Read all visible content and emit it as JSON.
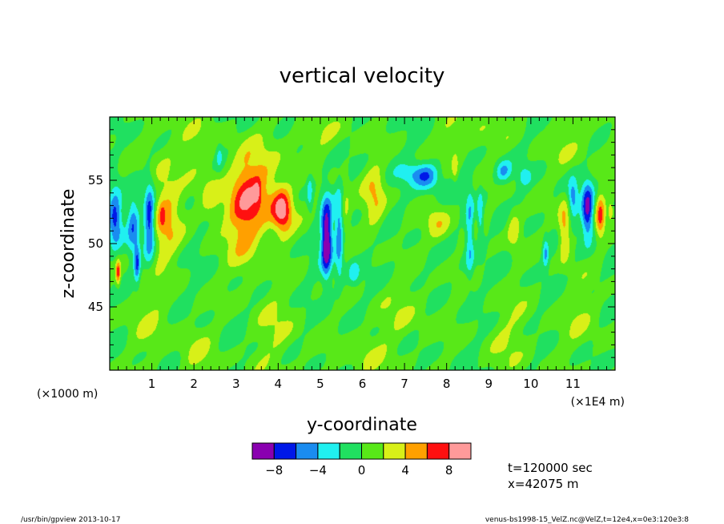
{
  "chart_data": {
    "type": "heatmap",
    "title": "vertical velocity",
    "xlabel": "y-coordinate",
    "ylabel": "z-coordinate",
    "x_unit_left": "(×1000 m)",
    "x_unit_right": "(×1E4 m)",
    "xlim": [
      0,
      12
    ],
    "ylim": [
      40,
      60
    ],
    "x_ticks": [
      "1",
      "2",
      "3",
      "4",
      "5",
      "6",
      "7",
      "8",
      "9",
      "10",
      "11"
    ],
    "x_tick_values": [
      1,
      2,
      3,
      4,
      5,
      6,
      7,
      8,
      9,
      10,
      11
    ],
    "y_ticks": [
      "45",
      "50",
      "55"
    ],
    "y_tick_values": [
      45,
      50,
      55
    ],
    "info_lines": [
      "t=120000 sec",
      "x=42075 m"
    ],
    "colorbar": {
      "levels": [
        -10,
        -8,
        -6,
        -4,
        -2,
        0,
        2,
        4,
        6,
        8,
        10
      ],
      "colors": [
        "#8a00b0",
        "#0018e8",
        "#1a8cf0",
        "#20f0f0",
        "#20e060",
        "#58e818",
        "#d8f018",
        "#ffa000",
        "#ff1010",
        "#ff9a9a"
      ],
      "tick_labels": [
        "−8",
        "−4",
        "0",
        "4",
        "8"
      ],
      "tick_values": [
        -8,
        -4,
        0,
        4,
        8
      ]
    },
    "features": [
      {
        "y": 5.15,
        "z": 50.4,
        "amp": -10.5,
        "sy": 0.09,
        "sz": 2.1
      },
      {
        "y": 5.45,
        "z": 50.5,
        "amp": -5.5,
        "sy": 0.07,
        "sz": 2.4
      },
      {
        "y": 0.55,
        "z": 51.6,
        "amp": -5.5,
        "sy": 0.1,
        "sz": 1.6
      },
      {
        "y": 0.65,
        "z": 48.4,
        "amp": -6.0,
        "sy": 0.05,
        "sz": 1.0
      },
      {
        "y": 0.13,
        "z": 52.0,
        "amp": -7.5,
        "sy": 0.12,
        "sz": 1.6
      },
      {
        "y": 0.95,
        "z": 51.8,
        "amp": -8.5,
        "sy": 0.09,
        "sz": 2.0
      },
      {
        "y": 8.55,
        "z": 50.8,
        "amp": -4.5,
        "sy": 0.07,
        "sz": 2.6
      },
      {
        "y": 8.8,
        "z": 52.0,
        "amp": -3.8,
        "sy": 0.05,
        "sz": 1.6
      },
      {
        "y": 11.35,
        "z": 52.6,
        "amp": -9.0,
        "sy": 0.1,
        "sz": 1.5
      },
      {
        "y": 11.0,
        "z": 53.6,
        "amp": -5.0,
        "sy": 0.08,
        "sz": 1.0
      },
      {
        "y": 10.35,
        "z": 49.2,
        "amp": -4.5,
        "sy": 0.05,
        "sz": 0.8
      },
      {
        "y": 7.55,
        "z": 55.3,
        "amp": -5.0,
        "sy": 0.2,
        "sz": 0.8
      },
      {
        "y": 7.2,
        "z": 55.5,
        "amp": -3.0,
        "sy": 0.25,
        "sz": 0.6
      },
      {
        "y": 9.35,
        "z": 55.7,
        "amp": -4.3,
        "sy": 0.13,
        "sz": 0.6
      },
      {
        "y": 9.85,
        "z": 55.3,
        "amp": -3.0,
        "sy": 0.1,
        "sz": 0.5
      },
      {
        "y": 4.75,
        "z": 54.0,
        "amp": -3.2,
        "sy": 0.05,
        "sz": 1.1
      },
      {
        "y": 5.8,
        "z": 47.6,
        "amp": -3.0,
        "sy": 0.1,
        "sz": 0.7
      },
      {
        "y": 2.6,
        "z": 57.0,
        "amp": -2.5,
        "sy": 0.06,
        "sz": 0.8
      },
      {
        "y": 4.1,
        "z": 52.6,
        "amp": 8.0,
        "sy": 0.16,
        "sz": 1.2
      },
      {
        "y": 3.5,
        "z": 54.0,
        "amp": 4.8,
        "sy": 0.45,
        "sz": 2.4
      },
      {
        "y": 3.2,
        "z": 52.0,
        "amp": 4.0,
        "sy": 0.3,
        "sz": 3.0
      },
      {
        "y": 3.5,
        "z": 54.1,
        "amp": 2.8,
        "sy": 0.05,
        "sz": 0.6
      },
      {
        "y": 1.3,
        "z": 52.2,
        "amp": 4.8,
        "sy": 0.25,
        "sz": 2.6
      },
      {
        "y": 1.25,
        "z": 52.2,
        "amp": 2.5,
        "sy": 0.04,
        "sz": 0.6
      },
      {
        "y": 0.2,
        "z": 47.7,
        "amp": 6.5,
        "sy": 0.04,
        "sz": 0.7
      },
      {
        "y": 6.3,
        "z": 53.6,
        "amp": 4.0,
        "sy": 0.18,
        "sz": 1.8
      },
      {
        "y": 7.8,
        "z": 51.5,
        "amp": 3.6,
        "sy": 0.22,
        "sz": 1.0
      },
      {
        "y": 9.6,
        "z": 51.2,
        "amp": 3.6,
        "sy": 0.12,
        "sz": 1.2
      },
      {
        "y": 10.8,
        "z": 51.0,
        "amp": 5.5,
        "sy": 0.1,
        "sz": 1.6
      },
      {
        "y": 11.65,
        "z": 52.2,
        "amp": 6.0,
        "sy": 0.08,
        "sz": 1.2
      },
      {
        "y": 11.9,
        "z": 52.5,
        "amp": 4.0,
        "sy": 0.04,
        "sz": 0.5
      },
      {
        "y": 5.6,
        "z": 53.0,
        "amp": 2.5,
        "sy": 0.08,
        "sz": 1.5
      },
      {
        "y": 8.2,
        "z": 56.0,
        "amp": 3.0,
        "sy": 0.05,
        "sz": 0.8
      },
      {
        "y": 2.4,
        "z": 53.5,
        "amp": 3.0,
        "sy": 0.2,
        "sz": 1.5
      },
      {
        "y": 0.9,
        "z": 44.0,
        "amp": 1.5,
        "sy": 0.4,
        "sz": 2.0
      },
      {
        "y": 4.0,
        "z": 43.0,
        "amp": 1.8,
        "sy": 0.4,
        "sz": 2.5
      },
      {
        "y": 7.0,
        "z": 44.5,
        "amp": 1.5,
        "sy": 0.5,
        "sz": 2.0
      },
      {
        "y": 9.5,
        "z": 42.5,
        "amp": 1.6,
        "sy": 0.4,
        "sz": 2.5
      },
      {
        "y": 11.2,
        "z": 44.0,
        "amp": 1.5,
        "sy": 0.4,
        "sz": 2.0
      },
      {
        "y": 2.0,
        "z": 41.5,
        "amp": 1.8,
        "sy": 0.3,
        "sz": 1.5
      },
      {
        "y": 6.0,
        "z": 41.0,
        "amp": 1.8,
        "sy": 0.4,
        "sz": 1.5
      },
      {
        "y": 1.8,
        "z": 58.0,
        "amp": 1.6,
        "sy": 0.5,
        "sz": 1.5
      },
      {
        "y": 5.0,
        "z": 58.5,
        "amp": 1.6,
        "sy": 0.6,
        "sz": 1.2
      },
      {
        "y": 8.5,
        "z": 58.5,
        "amp": 1.6,
        "sy": 0.6,
        "sz": 1.2
      },
      {
        "y": 11.0,
        "z": 58.0,
        "amp": 1.6,
        "sy": 0.5,
        "sz": 1.5
      }
    ]
  },
  "footer": {
    "left": "/usr/bin/gpview   2013-10-17",
    "right": "venus-bs1998-15_VelZ.nc@VelZ,t=12e4,x=0e3:120e3:8"
  }
}
